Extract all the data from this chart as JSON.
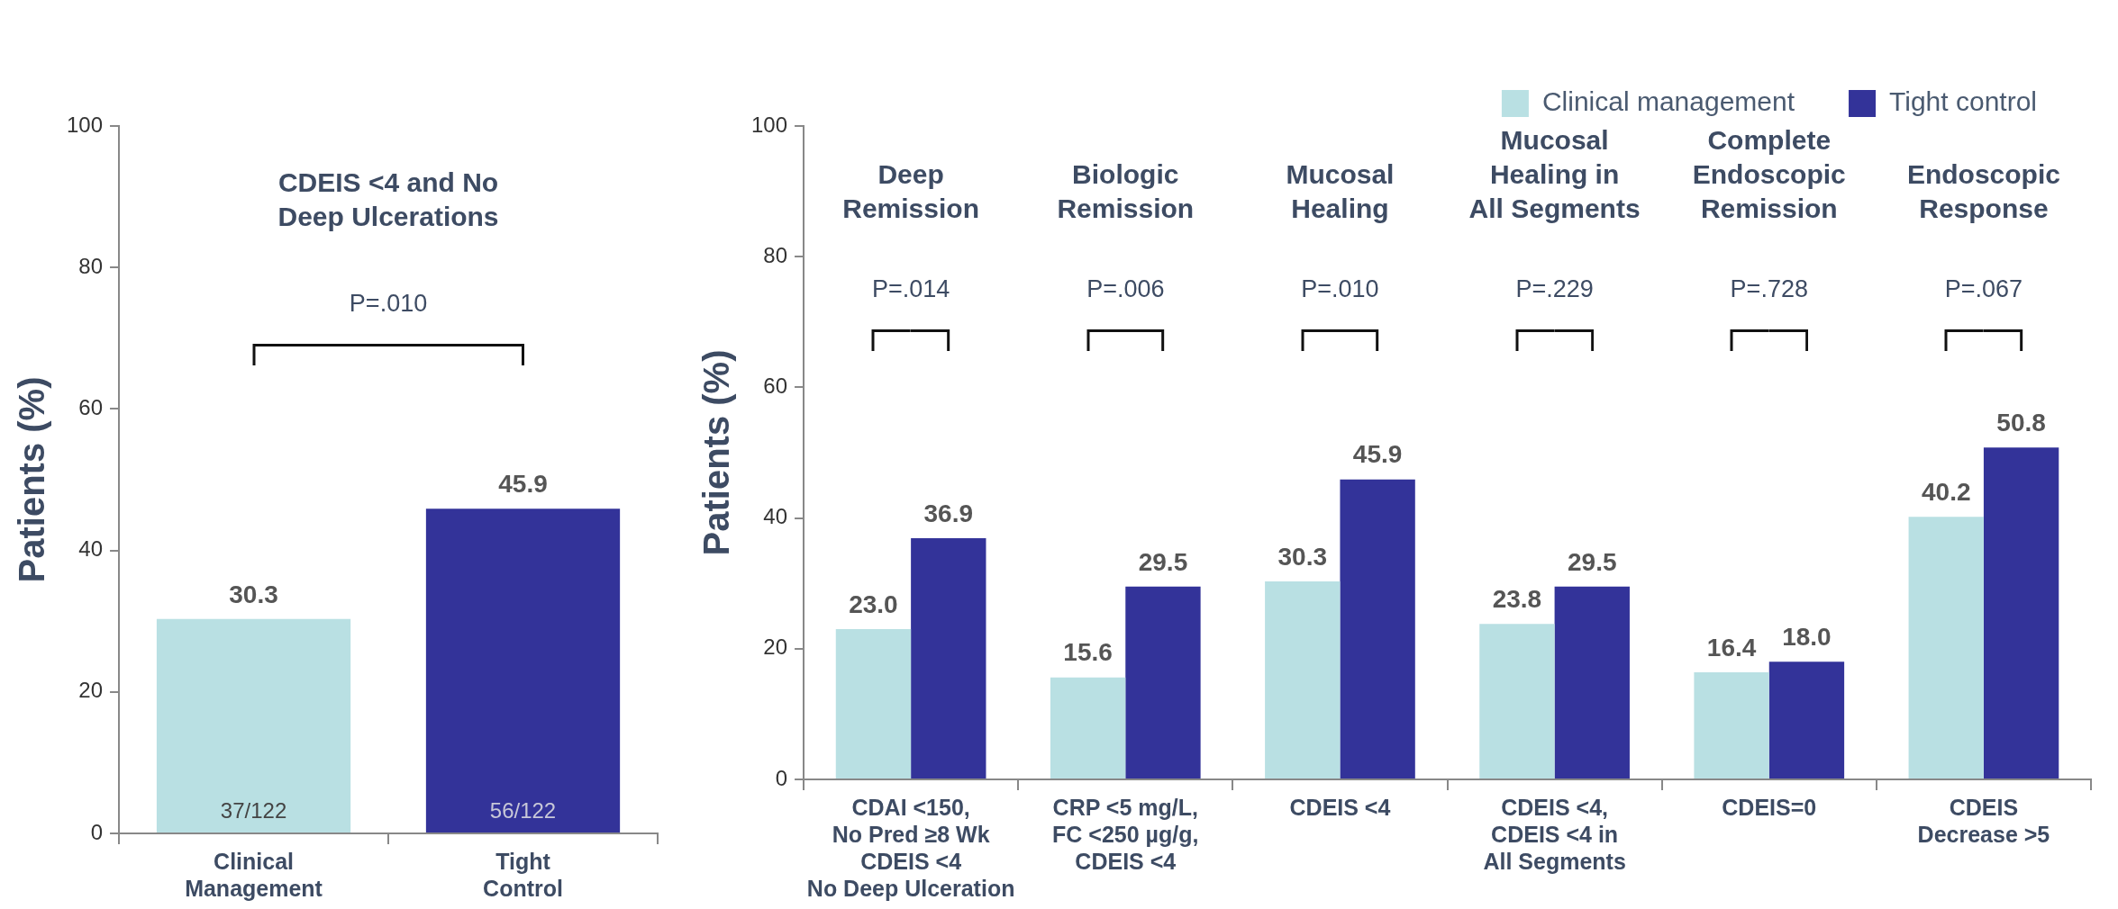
{
  "chart_data": [
    {
      "type": "bar",
      "categories": [
        "Clinical\nManagement",
        "Tight\nControl"
      ],
      "values": [
        30.3,
        45.9
      ],
      "colors": [
        "#b9e0e3",
        "#333399"
      ],
      "value_labels": [
        "30.3",
        "45.9"
      ],
      "ylabel": "Patients (%)",
      "ylim": [
        0,
        100
      ],
      "yticks": [
        0,
        20,
        40,
        60,
        80,
        100
      ],
      "grid": false,
      "legend": false,
      "annotations": [
        "CDEIS <4 and No\nDeep Ulcerations",
        "P=.010",
        "37/122",
        "56/122"
      ]
    },
    {
      "type": "bar",
      "categories": [
        "CDAI <150,\nNo Pred ≥8 Wk\nCDEIS <4\nNo Deep Ulceration",
        "CRP <5 mg/L,\nFC <250 µg/g,\nCDEIS <4",
        "CDEIS <4",
        "CDEIS <4,\nCDEIS <4 in\nAll Segments",
        "CDEIS=0",
        "CDEIS\nDecrease >5"
      ],
      "series": [
        {
          "name": "Clinical management",
          "color": "#b9e0e3",
          "values": [
            23.0,
            15.6,
            30.3,
            23.8,
            16.4,
            40.2
          ],
          "value_labels": [
            "23.0",
            "15.6",
            "30.3",
            "23.8",
            "16.4",
            "40.2"
          ]
        },
        {
          "name": "Tight control",
          "color": "#333399",
          "values": [
            36.9,
            29.5,
            45.9,
            29.5,
            18.0,
            50.8
          ],
          "value_labels": [
            "36.9",
            "29.5",
            "45.9",
            "29.5",
            "18.0",
            "50.8"
          ]
        }
      ],
      "ylabel": "Patients (%)",
      "ylim": [
        0,
        100
      ],
      "yticks": [
        0,
        20,
        40,
        60,
        80,
        100
      ],
      "grid": false,
      "legend": "top right",
      "annotations": [
        "Deep\nRemission",
        "P=.014",
        "Biologic\nRemission",
        "P=.006",
        "Mucosal\nHealing",
        "P=.010",
        "Mucosal\nHealing in\nAll Segments",
        "P=.229",
        "Complete\nEndoscopic\nRemission",
        "P=.728",
        "Endoscopic\nResponse",
        "P=.067"
      ]
    }
  ]
}
